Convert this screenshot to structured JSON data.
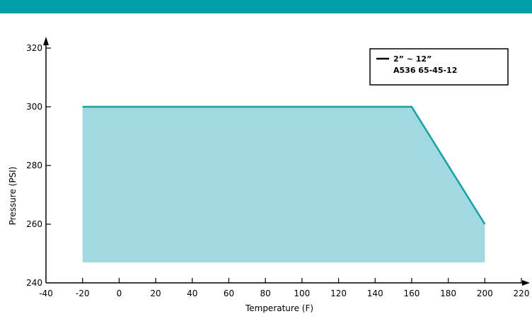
{
  "header": {
    "bar_color": "#00a0aa"
  },
  "chart_data": {
    "type": "area",
    "title": "",
    "xlabel": "Temperature (F)",
    "ylabel": "Pressure (PSI)",
    "xlim": [
      -40,
      220
    ],
    "ylim": [
      240,
      320
    ],
    "x_ticks": [
      -40,
      -20,
      0,
      20,
      40,
      60,
      80,
      100,
      120,
      140,
      160,
      180,
      200,
      220
    ],
    "y_ticks": [
      240,
      260,
      280,
      300,
      320
    ],
    "grid": false,
    "legend": {
      "placement": "top-right",
      "lines": [
        "2” ~ 12”",
        "A536 65-45-12"
      ]
    },
    "series": [
      {
        "x": [
          -20,
          160,
          200
        ],
        "y": [
          300,
          300,
          260
        ],
        "area_floor": 247,
        "line_color": "#13a0a8",
        "fill_color": "#a0d9df"
      }
    ]
  }
}
